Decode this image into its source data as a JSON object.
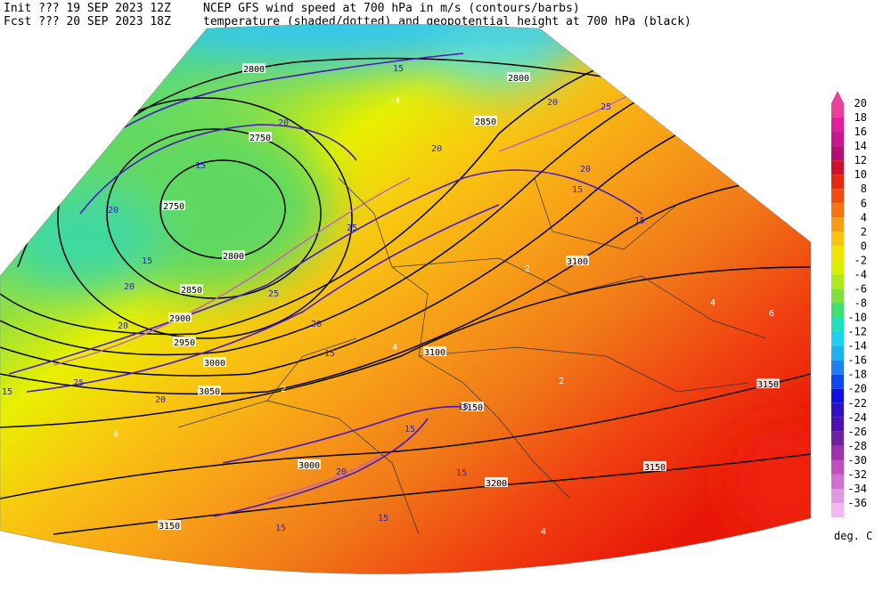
{
  "header": {
    "line1_left": "Init  ??? 19 SEP 2023 12Z",
    "line1_right": "NCEP GFS wind speed at 700 hPa in m/s (contours/barbs)",
    "line2_left": "Fcst ??? 20 SEP 2023 18Z",
    "line2_right": "temperature (shaded/dotted) and geopotential height at 700 hPa (black)"
  },
  "map": {
    "height_labels": [
      "2800",
      "2750",
      "2750",
      "2800",
      "2850",
      "2900",
      "2950",
      "3000",
      "3050",
      "3100",
      "3100",
      "3150",
      "3150",
      "3200",
      "3150",
      "3150",
      "2850",
      "2800",
      "3000"
    ],
    "wind_labels": [
      "15",
      "20",
      "15",
      "20",
      "15",
      "20",
      "20",
      "25",
      "15",
      "20",
      "25",
      "25",
      "20",
      "15",
      "20",
      "15",
      "20",
      "15",
      "25",
      "15",
      "15",
      "20",
      "15",
      "15",
      "15",
      "20"
    ],
    "temperature_labels": [
      "-4",
      "2",
      "4",
      "2",
      "4",
      "6",
      "2",
      "4",
      "4",
      "10"
    ]
  },
  "colorbar": {
    "levels": [
      20,
      18,
      16,
      14,
      12,
      10,
      8,
      6,
      4,
      2,
      0,
      -2,
      -4,
      -6,
      -8,
      -10,
      -12,
      -14,
      -16,
      -18,
      -20,
      -22,
      -24,
      -26,
      -28,
      -30,
      -32,
      -34,
      -36
    ],
    "colors": [
      "#e8409c",
      "#e0209a",
      "#c81890",
      "#b01070",
      "#d01030",
      "#e82810",
      "#f04c10",
      "#f87410",
      "#f89c18",
      "#f8c410",
      "#f0e400",
      "#d8f000",
      "#b0e820",
      "#80e040",
      "#40e070",
      "#20e0c0",
      "#20d0f0",
      "#20b0f0",
      "#2080f0",
      "#1048f0",
      "#1010e0",
      "#3010c0",
      "#5010b0",
      "#7020a0",
      "#a030b0",
      "#c050c0",
      "#d070d0",
      "#e098e0",
      "#f0b8f0"
    ],
    "unit": "deg. C"
  }
}
